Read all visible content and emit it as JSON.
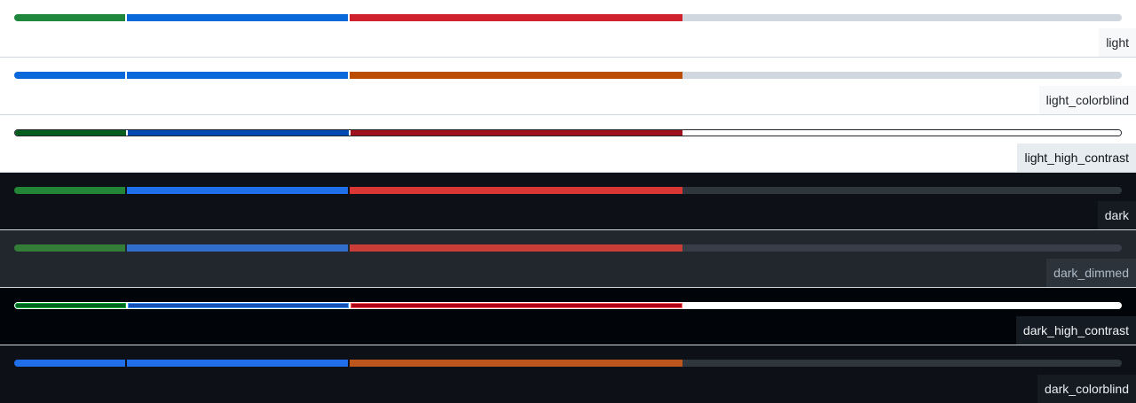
{
  "segments_fraction": [
    0.1,
    0.2,
    0.3,
    0.4
  ],
  "themes": [
    {
      "name": "light",
      "background": "#ffffff",
      "label_bg": "#f6f8fa",
      "label_color": "#1f2328",
      "separator": "#ffffff",
      "colors": [
        "#1f883d",
        "#0969da",
        "#cf222e",
        "#d0d7de"
      ],
      "rest_border": ""
    },
    {
      "name": "light_colorblind",
      "background": "#ffffff",
      "label_bg": "#f6f8fa",
      "label_color": "#1f2328",
      "separator": "#ffffff",
      "colors": [
        "#0969da",
        "#0969da",
        "#bc4c00",
        "#d0d7de"
      ],
      "rest_border": ""
    },
    {
      "name": "light_high_contrast",
      "background": "#ffffff",
      "label_bg": "#e7ecf0",
      "label_color": "#0e1116",
      "separator": "#ffffff",
      "colors": [
        "#055d20",
        "#0349b4",
        "#a0111f",
        "#ffffff"
      ],
      "rest_border": "#20252c"
    },
    {
      "name": "dark",
      "background": "#0d1117",
      "label_bg": "#161b22",
      "label_color": "#e6edf3",
      "separator": "#0d1117",
      "colors": [
        "#238636",
        "#1f6feb",
        "#da3633",
        "#30363d"
      ],
      "rest_border": ""
    },
    {
      "name": "dark_dimmed",
      "background": "#22272e",
      "label_bg": "#2d333b",
      "label_color": "#adbac7",
      "separator": "#22272e",
      "colors": [
        "#347d39",
        "#316dca",
        "#c93c37",
        "#373e47"
      ],
      "rest_border": ""
    },
    {
      "name": "dark_high_contrast",
      "background": "#010409",
      "label_bg": "#151b23",
      "label_color": "#f0f3f6",
      "separator": "#ffffff",
      "colors": [
        "#09b43a",
        "#409eff",
        "#ff6a69",
        "#ffffff"
      ],
      "rest_border": "",
      "dark_colors": [
        "#006222",
        "#194fb1",
        "#ad0116",
        "#ffffff"
      ]
    },
    {
      "name": "dark_colorblind",
      "background": "#0d1117",
      "label_bg": "#161b22",
      "label_color": "#e6edf3",
      "separator": "#0d1117",
      "colors": [
        "#1f6feb",
        "#1f6feb",
        "#bd561d",
        "#30363d"
      ],
      "rest_border": ""
    }
  ]
}
